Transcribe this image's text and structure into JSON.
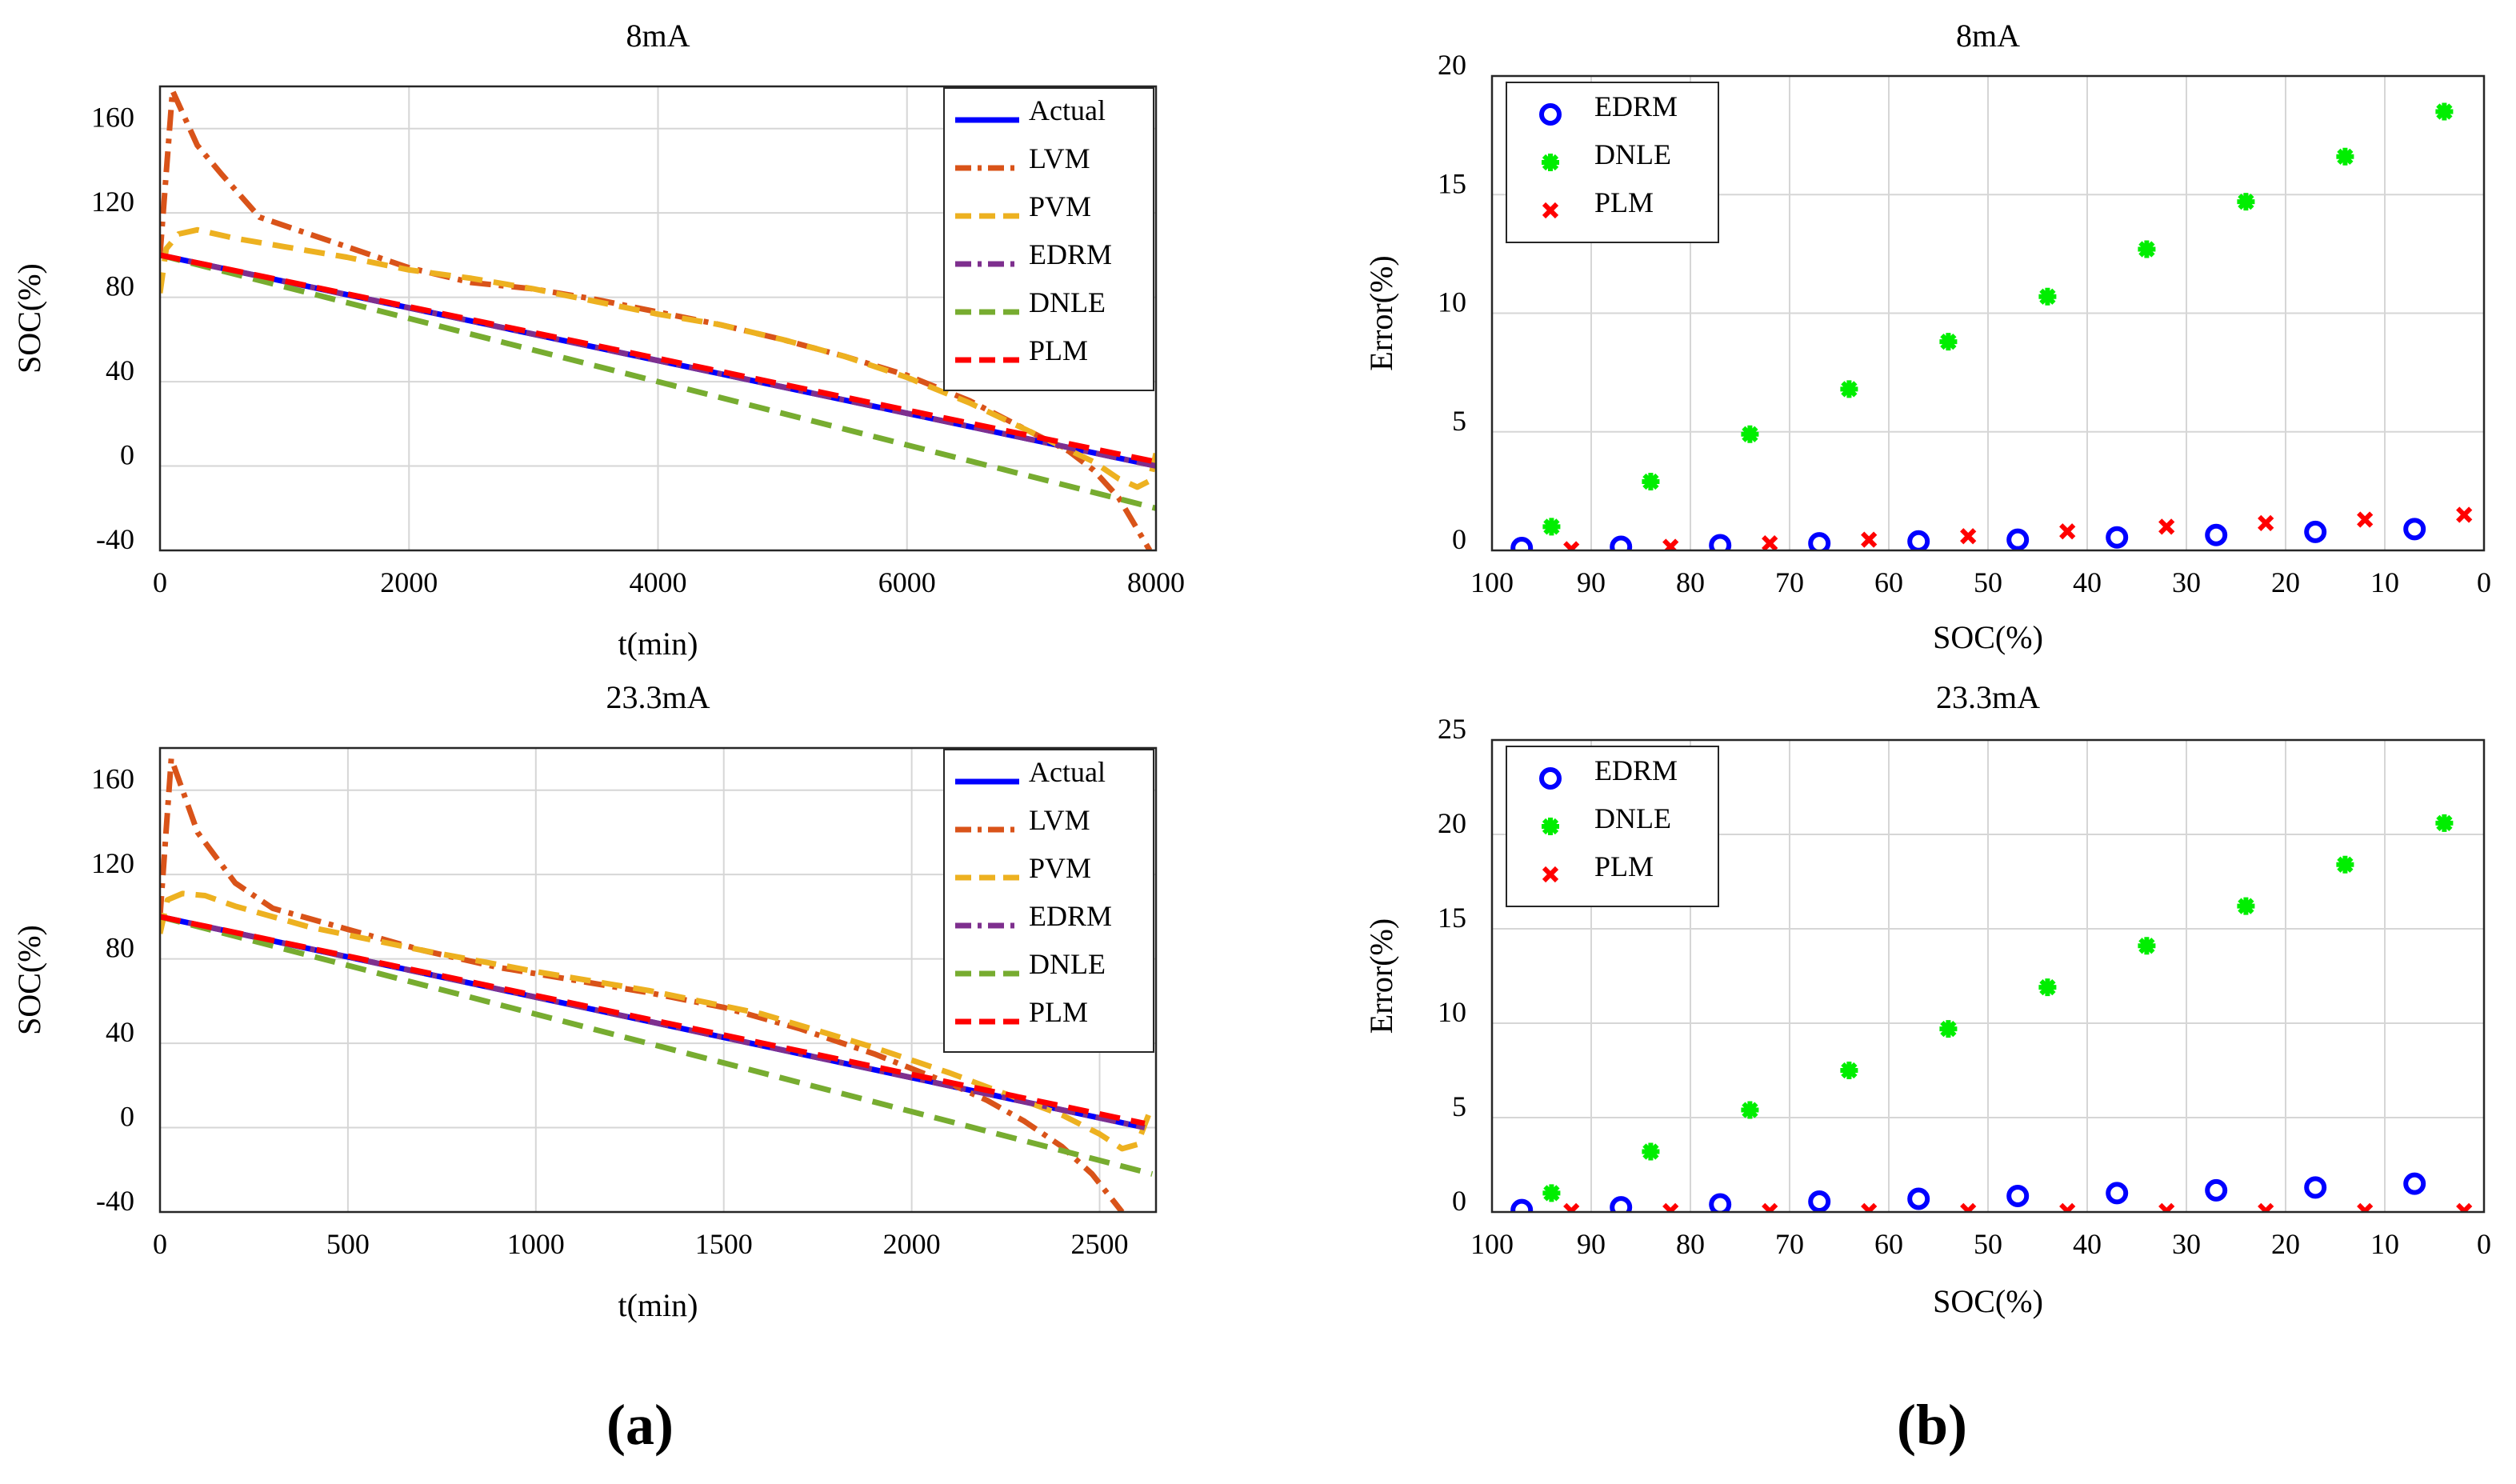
{
  "panel_labels": [
    "(a)",
    "(b)"
  ],
  "chart_data": [
    {
      "type": "line",
      "title": "8mA",
      "xlabel": "t(min)",
      "ylabel": "SOC(%)",
      "xlim": [
        0,
        8000
      ],
      "ylim": [
        -40,
        180
      ],
      "xticks": [
        0,
        2000,
        4000,
        6000,
        8000
      ],
      "yticks": [
        -40,
        0,
        40,
        80,
        120,
        160
      ],
      "grid": true,
      "legend": "top-right",
      "series": [
        {
          "name": "Actual",
          "color": "#0000ff",
          "style": "solid",
          "x": [
            0,
            8000
          ],
          "y": [
            100,
            0
          ]
        },
        {
          "name": "LVM",
          "color": "#d95319",
          "style": "dashdot",
          "x": [
            0,
            100,
            300,
            500,
            800,
            1500,
            2000,
            2500,
            3000,
            3500,
            4000,
            4500,
            5000,
            5500,
            6000,
            6500,
            7000,
            7300,
            7500,
            7700,
            7850,
            7950
          ],
          "y": [
            100,
            178,
            152,
            138,
            118,
            104,
            94,
            87,
            84,
            79,
            73,
            67,
            60,
            52,
            43,
            31,
            16,
            7,
            -2,
            -15,
            -30,
            -40
          ]
        },
        {
          "name": "PVM",
          "color": "#edb120",
          "style": "dashed",
          "x": [
            0,
            50,
            150,
            300,
            600,
            1000,
            1500,
            2000,
            2500,
            3000,
            3500,
            4000,
            4500,
            5000,
            5500,
            6000,
            6500,
            7000,
            7500,
            7700,
            7850,
            7950,
            8000
          ],
          "y": [
            82,
            103,
            110,
            112,
            108,
            104,
            99,
            93,
            89,
            84,
            78,
            72,
            67,
            60,
            52,
            42,
            30,
            16,
            2,
            -6,
            -10,
            -7,
            6
          ]
        },
        {
          "name": "EDRM",
          "color": "#7e2f8e",
          "style": "dashdot",
          "x": [
            0,
            8000
          ],
          "y": [
            100,
            0
          ]
        },
        {
          "name": "DNLE",
          "color": "#77ac30",
          "style": "dashed",
          "x": [
            0,
            8000
          ],
          "y": [
            100,
            -20
          ]
        },
        {
          "name": "PLM",
          "color": "#ff0000",
          "style": "dashed",
          "x": [
            0,
            8000
          ],
          "y": [
            100,
            2
          ]
        }
      ]
    },
    {
      "type": "line",
      "title": "23.3mA",
      "xlabel": "t(min)",
      "ylabel": "SOC(%)",
      "xlim": [
        0,
        2650
      ],
      "ylim": [
        -40,
        180
      ],
      "xticks": [
        0,
        500,
        1000,
        1500,
        2000,
        2500
      ],
      "yticks": [
        -40,
        0,
        40,
        80,
        120,
        160
      ],
      "grid": true,
      "legend": "top-right",
      "series": [
        {
          "name": "Actual",
          "color": "#0000ff",
          "style": "solid",
          "x": [
            0,
            2620
          ],
          "y": [
            100,
            0
          ]
        },
        {
          "name": "LVM",
          "color": "#d95319",
          "style": "dashdot",
          "x": [
            0,
            30,
            100,
            200,
            300,
            500,
            700,
            900,
            1100,
            1300,
            1500,
            1700,
            1900,
            2100,
            2200,
            2300,
            2400,
            2480,
            2560
          ],
          "y": [
            100,
            175,
            140,
            116,
            104,
            94,
            84,
            76,
            70,
            64,
            57,
            47,
            35,
            21,
            13,
            3,
            -9,
            -22,
            -40
          ]
        },
        {
          "name": "PVM",
          "color": "#edb120",
          "style": "dashed",
          "x": [
            0,
            20,
            60,
            120,
            200,
            400,
            700,
            1000,
            1300,
            1600,
            1900,
            2100,
            2250,
            2400,
            2500,
            2560,
            2600,
            2630
          ],
          "y": [
            92,
            108,
            111,
            110,
            105,
            95,
            84,
            74,
            65,
            54,
            38,
            26,
            16,
            6,
            -3,
            -10,
            -8,
            6
          ]
        },
        {
          "name": "EDRM",
          "color": "#7e2f8e",
          "style": "dashdot",
          "x": [
            0,
            2620
          ],
          "y": [
            100,
            0
          ]
        },
        {
          "name": "DNLE",
          "color": "#77ac30",
          "style": "dashed",
          "x": [
            0,
            2640
          ],
          "y": [
            100,
            -22
          ]
        },
        {
          "name": "PLM",
          "color": "#ff0000",
          "style": "dashed",
          "x": [
            0,
            2620
          ],
          "y": [
            100,
            2
          ]
        }
      ]
    },
    {
      "type": "scatter",
      "title": "8mA",
      "xlabel": "SOC(%)",
      "ylabel": "Error(%)",
      "xlim": [
        100,
        0
      ],
      "ylim": [
        0,
        20
      ],
      "xticks": [
        100,
        90,
        80,
        70,
        60,
        50,
        40,
        30,
        20,
        10,
        0
      ],
      "yticks": [
        0,
        5,
        10,
        15,
        20
      ],
      "grid": true,
      "legend": "top-left",
      "series": [
        {
          "name": "EDRM",
          "color": "#0000ff",
          "marker": "circle",
          "x": [
            97,
            87,
            77,
            67,
            57,
            47,
            37,
            27,
            17,
            7
          ],
          "y": [
            0.1,
            0.15,
            0.22,
            0.3,
            0.38,
            0.45,
            0.55,
            0.65,
            0.78,
            0.9
          ]
        },
        {
          "name": "DNLE",
          "color": "#00ee00",
          "marker": "asterisk",
          "x": [
            94,
            84,
            74,
            64,
            54,
            44,
            34,
            24,
            14,
            4
          ],
          "y": [
            1.0,
            2.9,
            4.9,
            6.8,
            8.8,
            10.7,
            12.7,
            14.7,
            16.6,
            18.5
          ]
        },
        {
          "name": "PLM",
          "color": "#ff0000",
          "marker": "x",
          "x": [
            92,
            82,
            72,
            62,
            52,
            42,
            32,
            22,
            12,
            2
          ],
          "y": [
            0.05,
            0.15,
            0.3,
            0.45,
            0.6,
            0.8,
            1.0,
            1.15,
            1.3,
            1.5
          ]
        }
      ]
    },
    {
      "type": "scatter",
      "title": "23.3mA",
      "xlabel": "SOC(%)",
      "ylabel": "Error(%)",
      "xlim": [
        100,
        0
      ],
      "ylim": [
        0,
        25
      ],
      "xticks": [
        100,
        90,
        80,
        70,
        60,
        50,
        40,
        30,
        20,
        10,
        0
      ],
      "yticks": [
        0,
        5,
        10,
        15,
        20,
        25
      ],
      "grid": true,
      "legend": "top-left",
      "series": [
        {
          "name": "EDRM",
          "color": "#0000ff",
          "marker": "circle",
          "x": [
            97,
            87,
            77,
            67,
            57,
            47,
            37,
            27,
            17,
            7
          ],
          "y": [
            0.1,
            0.25,
            0.4,
            0.55,
            0.7,
            0.85,
            1.0,
            1.15,
            1.3,
            1.5
          ]
        },
        {
          "name": "DNLE",
          "color": "#00ee00",
          "marker": "asterisk",
          "x": [
            94,
            84,
            74,
            64,
            54,
            44,
            34,
            24,
            14,
            4
          ],
          "y": [
            1.0,
            3.2,
            5.4,
            7.5,
            9.7,
            11.9,
            14.1,
            16.2,
            18.4,
            20.6
          ]
        },
        {
          "name": "PLM",
          "color": "#ff0000",
          "marker": "x",
          "x": [
            92,
            82,
            72,
            62,
            52,
            42,
            32,
            22,
            12,
            2
          ],
          "y": [
            0.05,
            0.05,
            0.05,
            0.05,
            0.05,
            0.05,
            0.05,
            0.05,
            0.05,
            0.05
          ]
        }
      ]
    }
  ]
}
